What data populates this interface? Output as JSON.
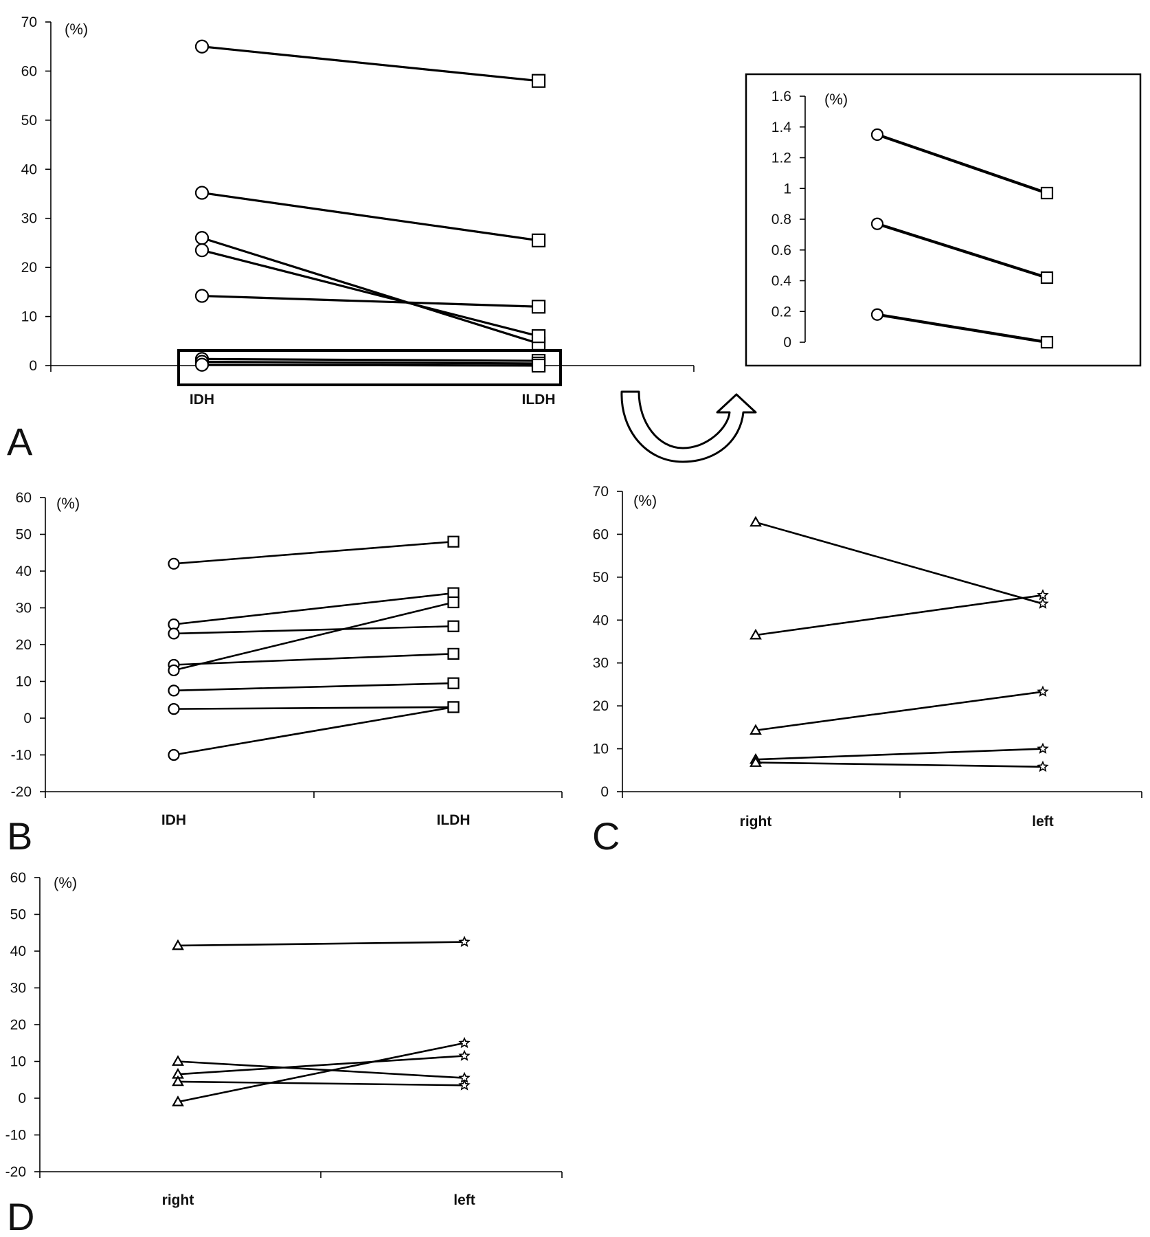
{
  "panel_labels": [
    "A",
    "B",
    "C",
    "D"
  ],
  "chart_data": [
    {
      "panel": "A",
      "type": "line",
      "unit_label": "(%)",
      "categories": [
        "IDH",
        "ILDH"
      ],
      "ylim": [
        0,
        70
      ],
      "yticks": [
        0,
        10,
        20,
        30,
        40,
        50,
        60,
        70
      ],
      "markers": [
        "circle",
        "square"
      ],
      "grid": false,
      "series": [
        {
          "values": [
            65,
            58
          ]
        },
        {
          "values": [
            35.2,
            25.5
          ]
        },
        {
          "values": [
            26,
            4.5
          ]
        },
        {
          "values": [
            23.5,
            6
          ]
        },
        {
          "values": [
            14.2,
            12
          ]
        },
        {
          "values": [
            1.35,
            0.97
          ]
        },
        {
          "values": [
            0.77,
            0.42
          ]
        },
        {
          "values": [
            0.18,
            0
          ]
        }
      ]
    },
    {
      "panel": "A-inset",
      "type": "line",
      "unit_label": "(%)",
      "categories": [
        "IDH",
        "ILDH"
      ],
      "ylim": [
        0,
        1.6
      ],
      "yticks": [
        "0",
        "0.2",
        "0.4",
        "0.6",
        "0.8",
        "1",
        "1.2",
        "1.4",
        "1.6"
      ],
      "markers": [
        "circle",
        "square"
      ],
      "grid": false,
      "series": [
        {
          "values": [
            1.35,
            0.97
          ]
        },
        {
          "values": [
            0.77,
            0.42
          ]
        },
        {
          "values": [
            0.18,
            0
          ]
        }
      ]
    },
    {
      "panel": "B",
      "type": "line",
      "unit_label": "(%)",
      "categories": [
        "IDH",
        "ILDH"
      ],
      "ylim": [
        -20,
        60
      ],
      "yticks": [
        -20,
        -10,
        0,
        10,
        20,
        30,
        40,
        50,
        60
      ],
      "markers": [
        "circle",
        "square"
      ],
      "grid": false,
      "series": [
        {
          "values": [
            42,
            48
          ]
        },
        {
          "values": [
            25.5,
            34
          ]
        },
        {
          "values": [
            23,
            25
          ]
        },
        {
          "values": [
            14.5,
            17.5
          ]
        },
        {
          "values": [
            13,
            31.5
          ]
        },
        {
          "values": [
            7.5,
            9.5
          ]
        },
        {
          "values": [
            2.5,
            3
          ]
        },
        {
          "values": [
            -10,
            3
          ]
        }
      ]
    },
    {
      "panel": "C",
      "type": "line",
      "unit_label": "(%)",
      "categories": [
        "right",
        "left"
      ],
      "ylim": [
        0,
        70
      ],
      "yticks": [
        0,
        10,
        20,
        30,
        40,
        50,
        60,
        70
      ],
      "markers": [
        "triangle",
        "star"
      ],
      "grid": false,
      "series": [
        {
          "values": [
            62.8,
            43.8
          ]
        },
        {
          "values": [
            36.5,
            45.8
          ]
        },
        {
          "values": [
            14.3,
            23.3
          ]
        },
        {
          "values": [
            7.5,
            10
          ]
        },
        {
          "values": [
            6.8,
            5.8
          ]
        }
      ]
    },
    {
      "panel": "D",
      "type": "line",
      "unit_label": "(%)",
      "categories": [
        "right",
        "left"
      ],
      "ylim": [
        -20,
        60
      ],
      "yticks": [
        -20,
        -10,
        0,
        10,
        20,
        30,
        40,
        50,
        60
      ],
      "markers": [
        "triangle",
        "star"
      ],
      "grid": false,
      "series": [
        {
          "values": [
            41.5,
            42.5
          ]
        },
        {
          "values": [
            10,
            5.5
          ]
        },
        {
          "values": [
            6.5,
            11.5
          ]
        },
        {
          "values": [
            4.5,
            3.5
          ]
        },
        {
          "values": [
            -1,
            15
          ]
        }
      ]
    }
  ]
}
